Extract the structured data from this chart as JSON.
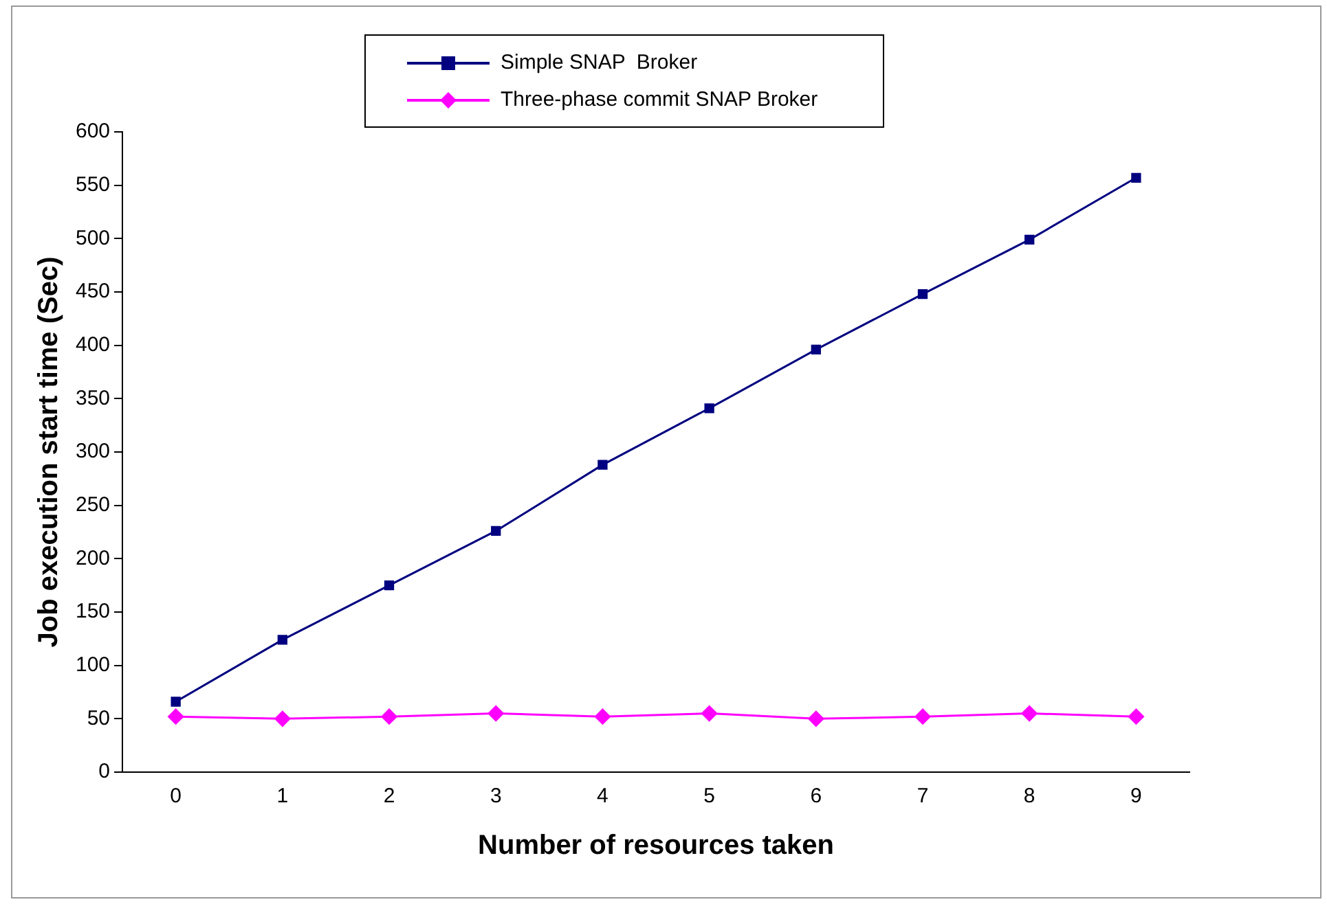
{
  "chart_data": {
    "type": "line",
    "xlabel": "Number of resources taken",
    "ylabel": "Job execution start time (Sec)",
    "categories": [
      "0",
      "1",
      "2",
      "3",
      "4",
      "5",
      "6",
      "7",
      "8",
      "9"
    ],
    "series": [
      {
        "name": "Simple SNAP  Broker",
        "color": "#000080",
        "marker": "square",
        "values": [
          66,
          124,
          175,
          226,
          288,
          341,
          396,
          448,
          499,
          557
        ]
      },
      {
        "name": "Three-phase commit SNAP Broker",
        "color": "#ff00ff",
        "marker": "diamond",
        "values": [
          52,
          50,
          52,
          55,
          52,
          55,
          50,
          52,
          55,
          52
        ]
      }
    ],
    "ylim": [
      0,
      600
    ],
    "yticks": [
      0,
      50,
      100,
      150,
      200,
      250,
      300,
      350,
      400,
      450,
      500,
      550,
      600
    ],
    "grid": false,
    "legend": "top"
  }
}
